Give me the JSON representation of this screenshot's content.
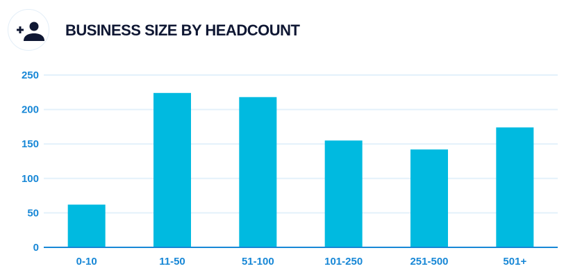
{
  "header": {
    "title": "BUSINESS SIZE BY HEADCOUNT",
    "icon": "add-user-icon"
  },
  "colors": {
    "bar": "#00bae0",
    "axis": "#1787d6",
    "grid": "#e3f1fb",
    "title": "#0f1733"
  },
  "chart_data": {
    "type": "bar",
    "title": "BUSINESS SIZE BY HEADCOUNT",
    "categories": [
      "0-10",
      "11-50",
      "51-100",
      "101-250",
      "251-500",
      "501+"
    ],
    "values": [
      62,
      224,
      218,
      155,
      142,
      174
    ],
    "xlabel": "",
    "ylabel": "",
    "ylim": [
      0,
      250
    ],
    "yticks": [
      "0",
      "50",
      "100",
      "150",
      "200",
      "250"
    ],
    "grid": true,
    "legend": "none"
  }
}
